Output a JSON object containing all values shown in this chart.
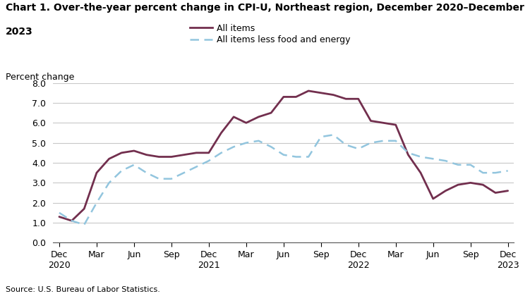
{
  "title_line1": "Chart 1. Over-the-year percent change in CPI-U, Northeast region, December 2020–December",
  "title_line2": "2023",
  "ylabel": "Percent change",
  "source": "Source: U.S. Bureau of Labor Statistics.",
  "ylim": [
    0.0,
    8.0
  ],
  "yticks": [
    0.0,
    1.0,
    2.0,
    3.0,
    4.0,
    5.0,
    6.0,
    7.0,
    8.0
  ],
  "x_labels": [
    "Dec\n2020",
    "Mar",
    "Jun",
    "Sep",
    "Dec\n2021",
    "Mar",
    "Jun",
    "Sep",
    "Dec\n2022",
    "Mar",
    "Jun",
    "Sep",
    "Dec\n2023"
  ],
  "x_tick_positions": [
    0,
    3,
    6,
    9,
    12,
    15,
    18,
    21,
    24,
    27,
    30,
    33,
    36
  ],
  "all_items_monthly": [
    1.3,
    1.1,
    1.7,
    3.5,
    4.2,
    4.5,
    4.6,
    4.4,
    4.3,
    4.3,
    4.4,
    4.5,
    4.5,
    5.5,
    6.3,
    6.0,
    6.3,
    6.5,
    7.3,
    7.3,
    7.6,
    7.5,
    7.4,
    7.2,
    7.2,
    6.1,
    6.0,
    5.9,
    4.4,
    3.5,
    2.2,
    2.6,
    2.9,
    3.0,
    2.9,
    2.5,
    2.6
  ],
  "all_less_monthly": [
    1.5,
    1.1,
    0.9,
    2.0,
    3.0,
    3.6,
    3.9,
    3.5,
    3.2,
    3.2,
    3.5,
    3.8,
    4.1,
    4.5,
    4.8,
    5.0,
    5.1,
    4.8,
    4.4,
    4.3,
    4.3,
    5.3,
    5.4,
    4.9,
    4.7,
    5.0,
    5.1,
    5.1,
    4.5,
    4.3,
    4.2,
    4.1,
    3.9,
    3.9,
    3.5,
    3.5,
    3.6
  ],
  "all_items_color": "#722F4E",
  "all_items_less_color": "#92C5DE",
  "background_color": "#ffffff",
  "grid_color": "#c8c8c8"
}
